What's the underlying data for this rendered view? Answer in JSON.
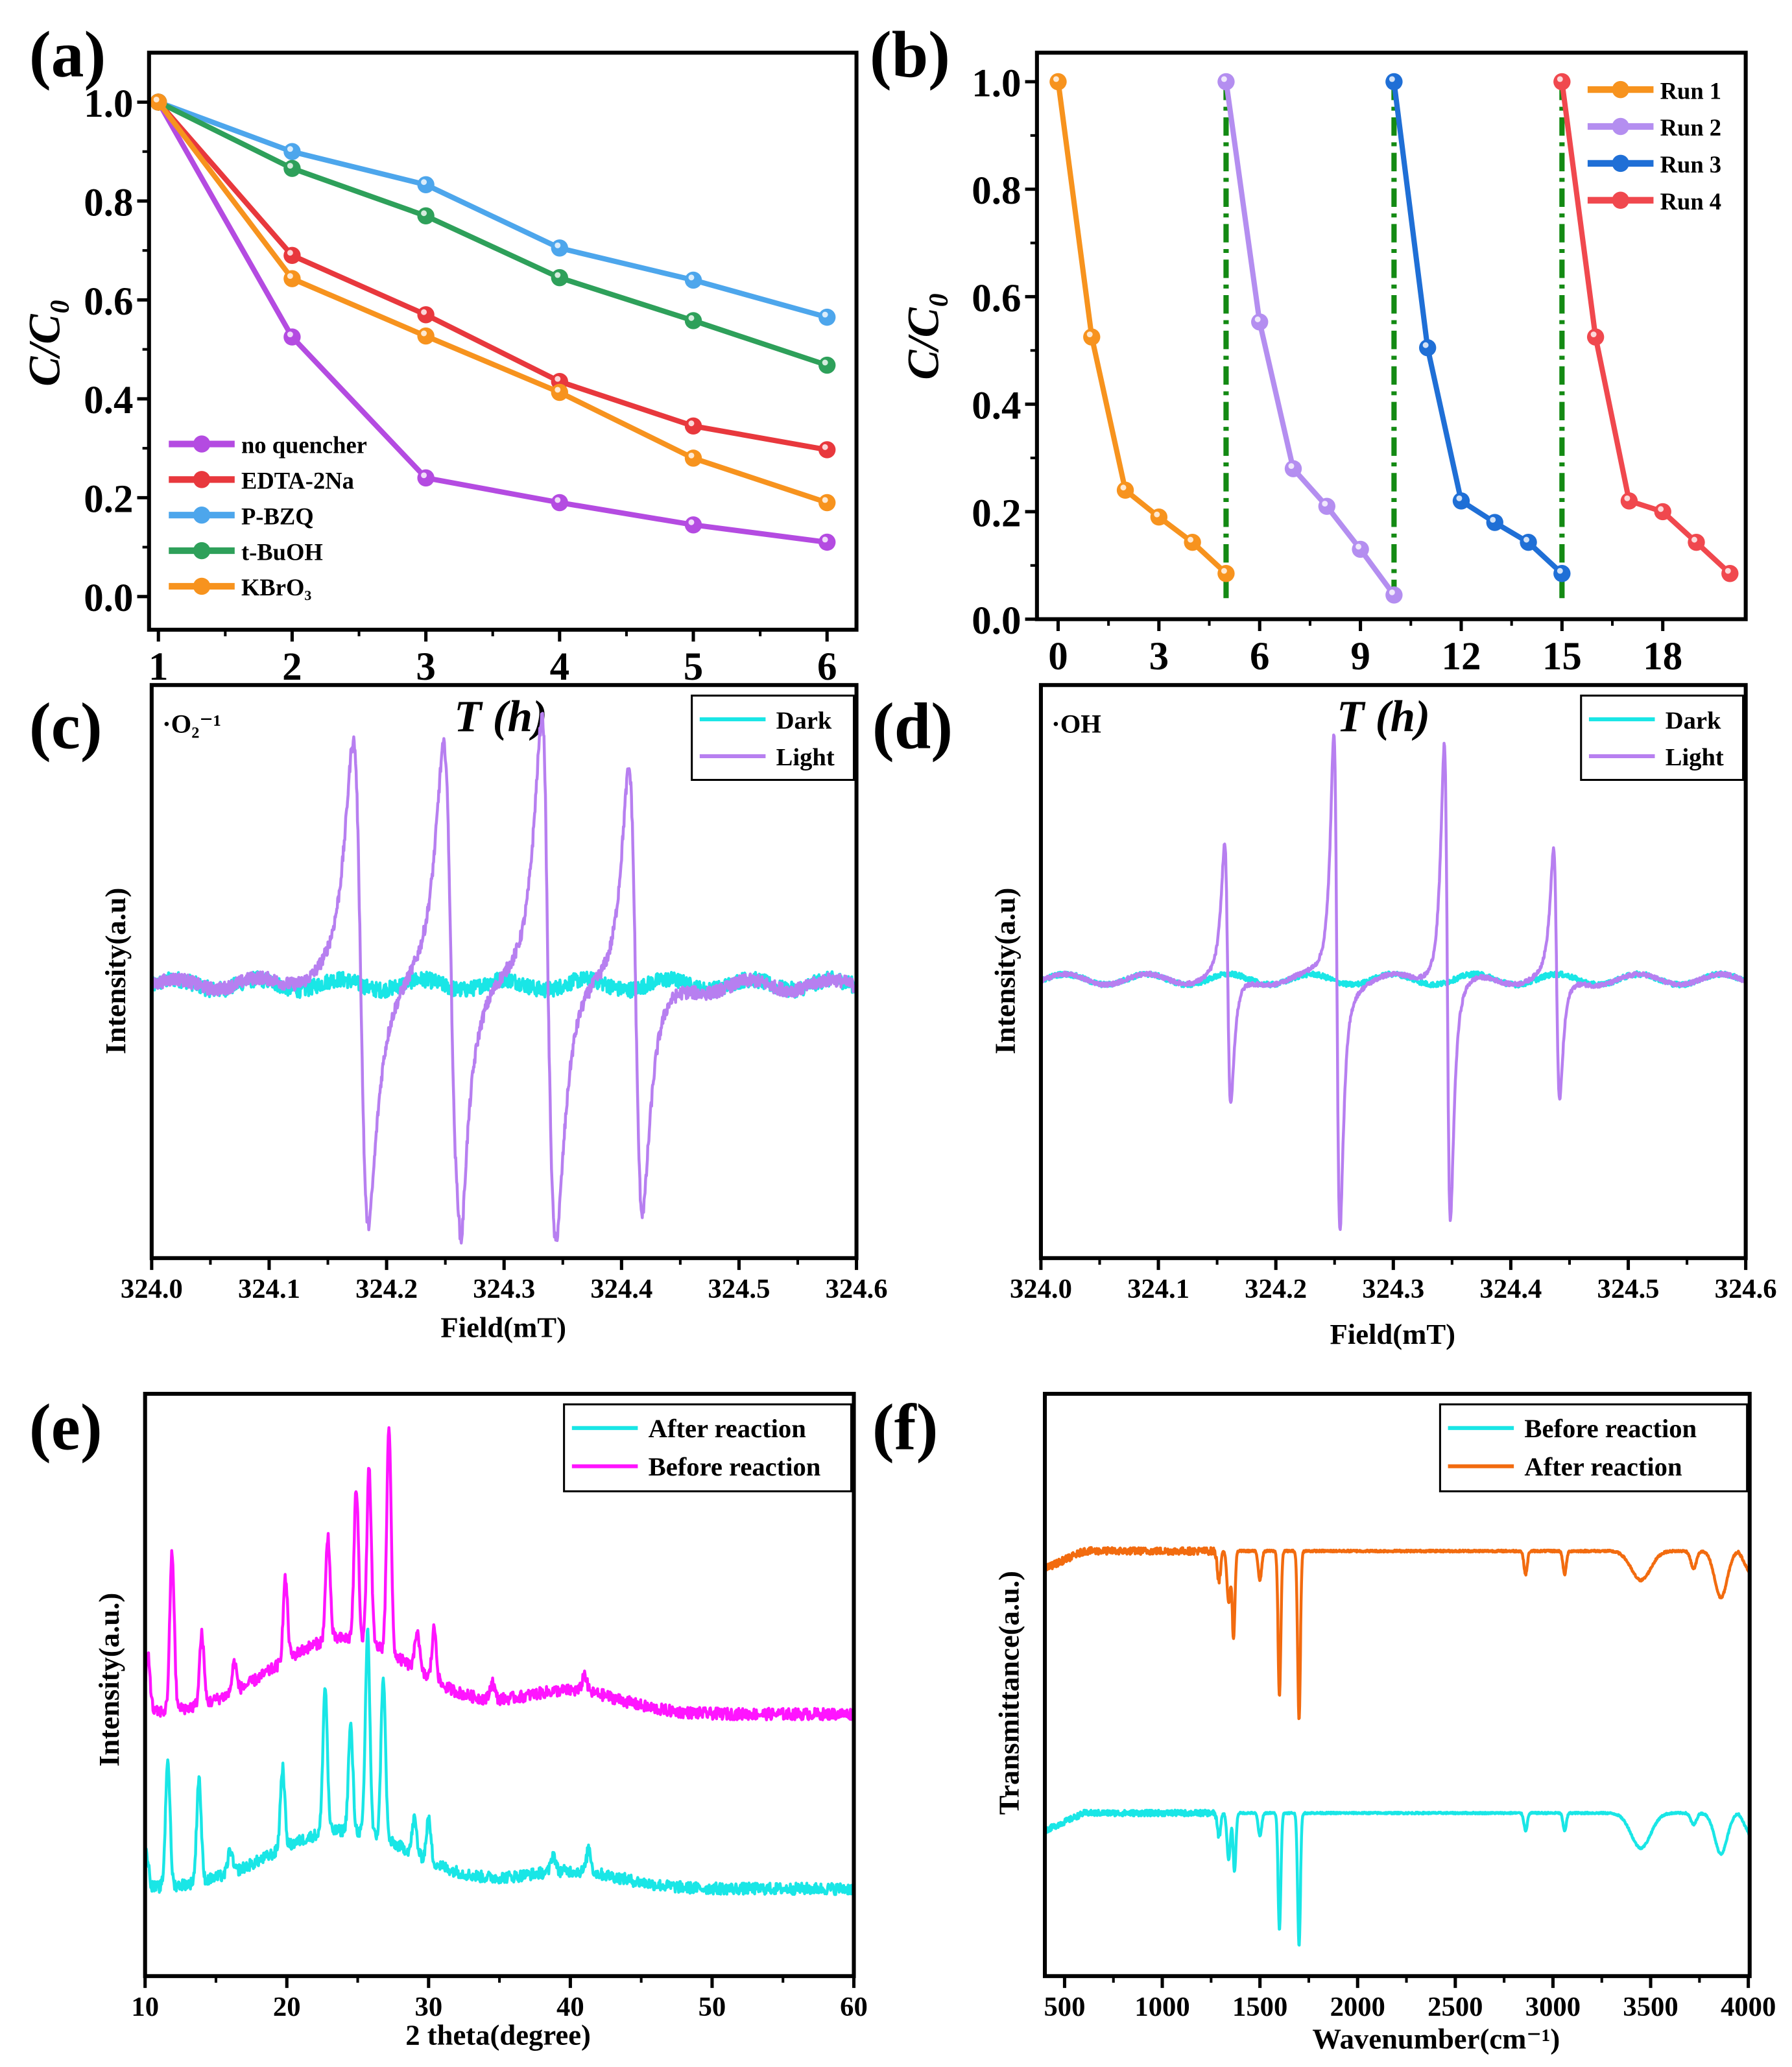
{
  "chart_data": [
    {
      "id": "a",
      "panel_label": "(a)",
      "type": "line",
      "xlabel": "T (h)",
      "ylabel": "C/C₀",
      "xlim": [
        0.93,
        6.22
      ],
      "ylim": [
        -0.067,
        1.1
      ],
      "xticks": [
        "1",
        "2",
        "3",
        "4",
        "5",
        "6"
      ],
      "xtick_values": [
        1,
        2,
        3,
        4,
        5,
        6
      ],
      "yticks": [
        "0.0",
        "0.2",
        "0.4",
        "0.6",
        "0.8",
        "1.0"
      ],
      "ytick_values": [
        0,
        0.2,
        0.4,
        0.6,
        0.8,
        1.0
      ],
      "legend": "bottom-left",
      "series": [
        {
          "name": "no quencher",
          "color": "#b44be1",
          "x": [
            1,
            2,
            3,
            4,
            5,
            6
          ],
          "y": [
            1.0,
            0.525,
            0.24,
            0.19,
            0.145,
            0.11
          ]
        },
        {
          "name": "EDTA-2Na",
          "color": "#e8383d",
          "x": [
            1,
            2,
            3,
            4,
            5,
            6
          ],
          "y": [
            1.0,
            0.69,
            0.57,
            0.435,
            0.345,
            0.297
          ]
        },
        {
          "name": "P-BZQ",
          "color": "#4da6ec",
          "x": [
            1,
            2,
            3,
            4,
            5,
            6
          ],
          "y": [
            1.0,
            0.9,
            0.833,
            0.705,
            0.64,
            0.565
          ]
        },
        {
          "name": "t-BuOH",
          "color": "#2ea05a",
          "x": [
            1,
            2,
            3,
            4,
            5,
            6
          ],
          "y": [
            1.0,
            0.866,
            0.77,
            0.645,
            0.558,
            0.468
          ]
        },
        {
          "name": "KBrO₃",
          "color": "#f7931e",
          "x": [
            1,
            2,
            3,
            4,
            5,
            6
          ],
          "y": [
            1.0,
            0.643,
            0.527,
            0.413,
            0.28,
            0.19
          ]
        }
      ]
    },
    {
      "id": "b",
      "panel_label": "(b)",
      "type": "line",
      "xlabel": "T (h)",
      "ylabel": "C/C₀",
      "xlim": [
        -0.63,
        20.47
      ],
      "ylim": [
        0,
        1.054
      ],
      "xticks": [
        "0",
        "3",
        "6",
        "9",
        "12",
        "15",
        "18"
      ],
      "xtick_values": [
        0,
        3,
        6,
        9,
        12,
        15,
        18
      ],
      "yticks": [
        "0.0",
        "0.2",
        "0.4",
        "0.6",
        "0.8",
        "1.0"
      ],
      "ytick_values": [
        0,
        0.2,
        0.4,
        0.6,
        0.8,
        1.0
      ],
      "legend": "top-right",
      "vlines": {
        "x": [
          5,
          10,
          15
        ],
        "color": "#138a13",
        "style": "dash-dot"
      },
      "series": [
        {
          "name": "Run 1",
          "color": "#f7931e",
          "x": [
            0,
            1,
            2,
            3,
            4,
            5
          ],
          "y": [
            1.0,
            0.525,
            0.24,
            0.19,
            0.143,
            0.085
          ]
        },
        {
          "name": "Run 2",
          "color": "#b48ef0",
          "x": [
            5,
            6,
            7,
            8,
            9,
            10
          ],
          "y": [
            1.0,
            0.553,
            0.28,
            0.21,
            0.13,
            0.045
          ]
        },
        {
          "name": "Run 3",
          "color": "#1f6fd6",
          "x": [
            10,
            11,
            12,
            13,
            14,
            15
          ],
          "y": [
            1.0,
            0.505,
            0.22,
            0.18,
            0.143,
            0.085
          ]
        },
        {
          "name": "Run 4",
          "color": "#f0484e",
          "x": [
            15,
            16,
            17,
            18,
            19,
            20
          ],
          "y": [
            1.0,
            0.525,
            0.22,
            0.2,
            0.143,
            0.085
          ]
        }
      ]
    },
    {
      "id": "c",
      "panel_label": "(c)",
      "type": "line",
      "annotation": "·O₂⁻¹",
      "xlabel": "Field(mT)",
      "ylabel": "Intensity(a.u)",
      "xlim": [
        324.0,
        324.6
      ],
      "ylim": [
        -1.1,
        1.1
      ],
      "xticks": [
        "324.0",
        "324.1",
        "324.2",
        "324.3",
        "324.4",
        "324.5",
        "324.6"
      ],
      "xtick_values": [
        324.0,
        324.1,
        324.2,
        324.3,
        324.4,
        324.5,
        324.6
      ],
      "legend": "top-right",
      "series": [
        {
          "name": "Dark",
          "color": "#19e6e6",
          "kind": "epr",
          "peaks": [],
          "baseline": -0.05,
          "noise": 0.03
        },
        {
          "name": "Light",
          "color": "#b77ff0",
          "kind": "epr",
          "baseline": -0.05,
          "noise": 0.025,
          "peaks": [
            {
              "center": 324.178,
              "amp": 0.92,
              "width": 0.011
            },
            {
              "center": 324.255,
              "amp": 0.92,
              "width": 0.011
            },
            {
              "center": 324.338,
              "amp": 0.94,
              "width": 0.011
            },
            {
              "center": 324.412,
              "amp": 0.86,
              "width": 0.01
            },
            {
              "center": 324.262,
              "amp": 0.12,
              "width": 0.004
            },
            {
              "center": 324.336,
              "amp": 0.14,
              "width": 0.004
            }
          ]
        }
      ]
    },
    {
      "id": "d",
      "panel_label": "(d)",
      "type": "line",
      "annotation": "·OH",
      "xlabel": "Field(mT)",
      "ylabel": "Intensity(a.u)",
      "xlim": [
        324.0,
        324.6
      ],
      "ylim": [
        -1.1,
        1.1
      ],
      "xticks": [
        "324.0",
        "324.1",
        "324.2",
        "324.3",
        "324.4",
        "324.5",
        "324.6"
      ],
      "xtick_values": [
        324.0,
        324.1,
        324.2,
        324.3,
        324.4,
        324.5,
        324.6
      ],
      "legend": "top-right",
      "series": [
        {
          "name": "Dark",
          "color": "#19e6e6",
          "kind": "epr",
          "peaks": [],
          "baseline": -0.03,
          "noise": 0.01
        },
        {
          "name": "Light",
          "color": "#b77ff0",
          "kind": "epr",
          "baseline": -0.03,
          "noise": 0.008,
          "peaks": [
            {
              "center": 324.159,
              "amp": 0.5,
              "width": 0.0045
            },
            {
              "center": 324.252,
              "amp": 0.95,
              "width": 0.0045
            },
            {
              "center": 324.346,
              "amp": 0.92,
              "width": 0.0045
            },
            {
              "center": 324.439,
              "amp": 0.48,
              "width": 0.0045
            }
          ]
        }
      ]
    },
    {
      "id": "e",
      "panel_label": "(e)",
      "type": "line",
      "xlabel": "2 theta(degree)",
      "ylabel": "Intensity(a.u.)",
      "xlim": [
        10,
        60
      ],
      "ylim": [
        0,
        100
      ],
      "xticks": [
        "10",
        "20",
        "30",
        "40",
        "50",
        "60"
      ],
      "xtick_values": [
        10,
        20,
        30,
        40,
        50,
        60
      ],
      "legend": "top-right",
      "series": [
        {
          "name": "After reaction",
          "color": "#19e6e6",
          "kind": "xrd",
          "base": 15,
          "hump": [
            10,
            24,
            7
          ],
          "hump2": [
            3,
            40,
            5
          ],
          "noise": 1.0,
          "peaks": [
            [
              10.1,
              6
            ],
            [
              11.6,
              22
            ],
            [
              13.8,
              18
            ],
            [
              16.0,
              4
            ],
            [
              19.7,
              14
            ],
            [
              22.7,
              25
            ],
            [
              24.5,
              18
            ],
            [
              25.7,
              35
            ],
            [
              26.8,
              28
            ],
            [
              29.0,
              6
            ],
            [
              30.0,
              7
            ],
            [
              38.8,
              3
            ],
            [
              41.3,
              4
            ]
          ]
        },
        {
          "name": "Before reaction",
          "color": "#ff14ff",
          "kind": "xrd",
          "base": 45,
          "hump": [
            13,
            24,
            7
          ],
          "hump2": [
            4,
            40,
            5
          ],
          "noise": 1.0,
          "peaks": [
            [
              10.2,
              10
            ],
            [
              11.9,
              27
            ],
            [
              14.0,
              12
            ],
            [
              16.3,
              5
            ],
            [
              19.9,
              14
            ],
            [
              22.9,
              18
            ],
            [
              24.9,
              26
            ],
            [
              25.8,
              30
            ],
            [
              27.2,
              39
            ],
            [
              29.2,
              7
            ],
            [
              30.4,
              9
            ],
            [
              34.5,
              3
            ],
            [
              41.0,
              3
            ]
          ]
        }
      ]
    },
    {
      "id": "f",
      "panel_label": "(f)",
      "type": "line",
      "xlabel": "Wavenumber(cm⁻¹)",
      "ylabel": "Transmittance(a.u.)",
      "xlim": [
        399,
        4007
      ],
      "ylim": [
        0,
        100
      ],
      "xticks": [
        "500",
        "1000",
        "1500",
        "2000",
        "2500",
        "3000",
        "3500",
        "4000"
      ],
      "xtick_values": [
        500,
        1000,
        1500,
        2000,
        2500,
        3000,
        3500,
        4000
      ],
      "legend": "top-right",
      "series": [
        {
          "name": "Before reaction",
          "color": "#19e6e6",
          "kind": "ftir",
          "base": 28,
          "noise": 0.5,
          "dips": [
            [
              1290,
              4,
              12
            ],
            [
              1340,
              8,
              12
            ],
            [
              1370,
              10,
              10
            ],
            [
              1500,
              4,
              12
            ],
            [
              1600,
              20,
              10
            ],
            [
              1700,
              23,
              10
            ],
            [
              2860,
              3,
              12
            ],
            [
              3060,
              3,
              12
            ],
            [
              3450,
              6,
              70
            ],
            [
              3720,
              2,
              20
            ],
            [
              3860,
              7,
              45
            ]
          ]
        },
        {
          "name": "After reaction",
          "color": "#f26b0f",
          "kind": "ftir",
          "base": 73,
          "noise": 0.6,
          "dips": [
            [
              1290,
              5,
              12
            ],
            [
              1340,
              9,
              12
            ],
            [
              1365,
              15,
              10
            ],
            [
              1500,
              5,
              12
            ],
            [
              1600,
              25,
              10
            ],
            [
              1700,
              29,
              10
            ],
            [
              2860,
              4,
              12
            ],
            [
              3060,
              4,
              12
            ],
            [
              3450,
              5,
              70
            ],
            [
              3720,
              3,
              20
            ],
            [
              3860,
              8,
              45
            ]
          ]
        }
      ]
    }
  ]
}
